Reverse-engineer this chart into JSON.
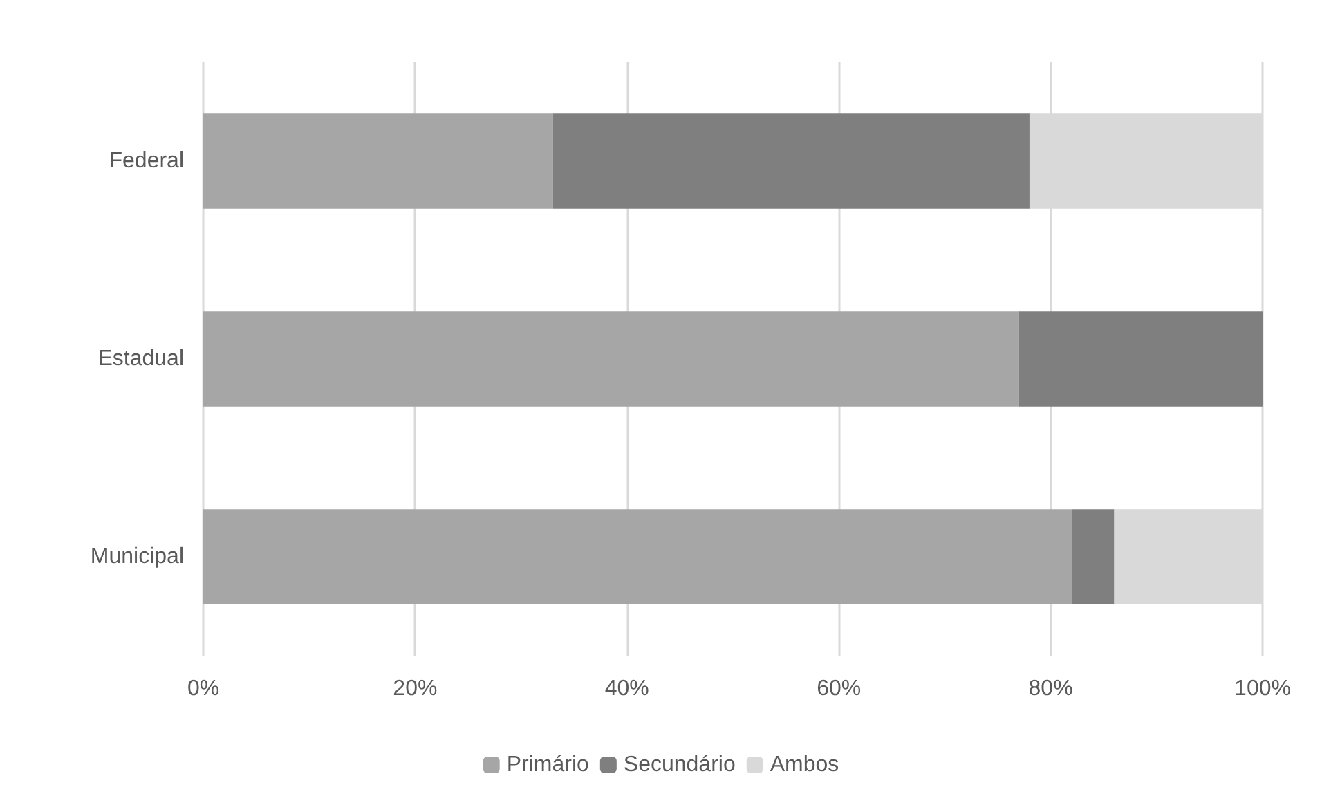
{
  "chart_data": {
    "type": "bar",
    "orientation": "horizontal",
    "stacked": true,
    "categories": [
      "Federal",
      "Estadual",
      "Municipal"
    ],
    "series": [
      {
        "name": "Primário",
        "color": "#a6a6a6",
        "values": [
          33,
          77,
          82
        ]
      },
      {
        "name": "Secundário",
        "color": "#7f7f7f",
        "values": [
          45,
          23,
          4
        ]
      },
      {
        "name": "Ambos",
        "color": "#d9d9d9",
        "values": [
          22,
          0,
          14
        ]
      }
    ],
    "xlim": [
      0,
      100
    ],
    "xticks": [
      {
        "value": 0,
        "label": "0%"
      },
      {
        "value": 20,
        "label": "20%"
      },
      {
        "value": 40,
        "label": "40%"
      },
      {
        "value": 60,
        "label": "60%"
      },
      {
        "value": 80,
        "label": "80%"
      },
      {
        "value": 100,
        "label": "100%"
      }
    ],
    "grid": "x",
    "legend": "bottom"
  }
}
